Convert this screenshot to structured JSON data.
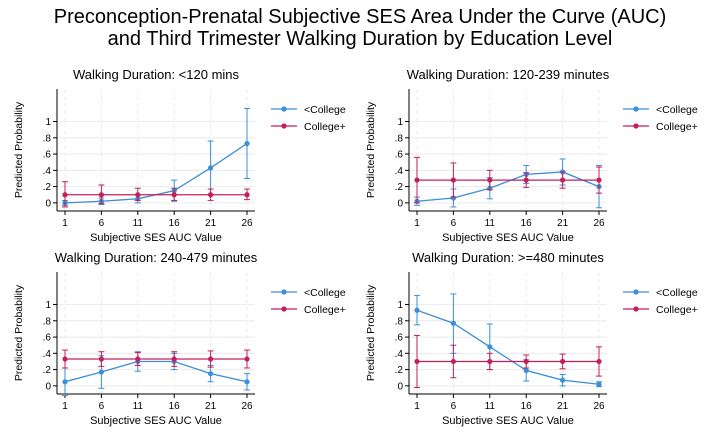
{
  "title": {
    "line1": "Preconception-Prenatal Subjective SES Area Under the Curve (AUC)",
    "line2": "and Third Trimester Walking Duration by Education Level"
  },
  "colors": {
    "college_less": "#3a8fd6",
    "college_plus": "#c41f5d",
    "axis": "#000000",
    "grid": "#e6e6e6"
  },
  "chart_data": [
    {
      "type": "line",
      "title": "Walking Duration: <120 mins",
      "xlabel": "Subjective SES AUC Value",
      "ylabel": "Predicted Probability",
      "x": [
        1,
        6,
        11,
        16,
        21,
        26
      ],
      "x_ticks": [
        "1",
        "6",
        "11",
        "16",
        "21",
        "26"
      ],
      "y_ticks": [
        "0",
        ".2",
        ".4",
        ".6",
        ".8",
        "1"
      ],
      "ylim": [
        -0.1,
        1.4
      ],
      "grid": true,
      "legend": "right",
      "series": [
        {
          "name": "<College",
          "values": [
            0.0,
            0.02,
            0.05,
            0.15,
            0.43,
            0.73
          ],
          "ci_low": [
            -0.03,
            -0.02,
            0.0,
            0.02,
            0.1,
            0.3
          ],
          "ci_high": [
            0.03,
            0.06,
            0.1,
            0.28,
            0.76,
            1.16
          ]
        },
        {
          "name": "College+",
          "values": [
            0.1,
            0.1,
            0.1,
            0.1,
            0.1,
            0.1
          ],
          "ci_low": [
            -0.05,
            -0.01,
            0.03,
            0.03,
            0.03,
            0.04
          ],
          "ci_high": [
            0.26,
            0.22,
            0.18,
            0.18,
            0.17,
            0.17
          ]
        }
      ]
    },
    {
      "type": "line",
      "title": "Walking Duration: 120-239 minutes",
      "xlabel": "Subjective SES AUC Value",
      "ylabel": "Predicted Probability",
      "x": [
        1,
        6,
        11,
        16,
        21,
        26
      ],
      "x_ticks": [
        "1",
        "6",
        "11",
        "16",
        "21",
        "26"
      ],
      "y_ticks": [
        "0",
        ".2",
        ".4",
        ".6",
        ".8",
        "1"
      ],
      "ylim": [
        -0.1,
        1.4
      ],
      "grid": true,
      "legend": "right",
      "series": [
        {
          "name": "<College",
          "values": [
            0.02,
            0.06,
            0.18,
            0.35,
            0.38,
            0.2
          ],
          "ci_low": [
            -0.03,
            -0.05,
            0.05,
            0.24,
            0.22,
            -0.06
          ],
          "ci_high": [
            0.07,
            0.17,
            0.31,
            0.46,
            0.54,
            0.46
          ]
        },
        {
          "name": "College+",
          "values": [
            0.28,
            0.28,
            0.28,
            0.28,
            0.28,
            0.28
          ],
          "ci_low": [
            0.0,
            0.07,
            0.16,
            0.19,
            0.18,
            0.12
          ],
          "ci_high": [
            0.56,
            0.49,
            0.4,
            0.37,
            0.38,
            0.44
          ]
        }
      ]
    },
    {
      "type": "line",
      "title": "Walking Duration: 240-479 minutes",
      "xlabel": "Subjective SES AUC Value",
      "ylabel": "Predicted Probability",
      "x": [
        1,
        6,
        11,
        16,
        21,
        26
      ],
      "x_ticks": [
        "1",
        "6",
        "11",
        "16",
        "21",
        "26"
      ],
      "y_ticks": [
        "0",
        ".2",
        ".4",
        ".6",
        ".8",
        "1"
      ],
      "ylim": [
        -0.1,
        1.4
      ],
      "grid": true,
      "legend": "right",
      "series": [
        {
          "name": "<College",
          "values": [
            0.05,
            0.17,
            0.3,
            0.3,
            0.15,
            0.05
          ],
          "ci_low": [
            -0.12,
            -0.03,
            0.18,
            0.2,
            0.05,
            -0.05
          ],
          "ci_high": [
            0.22,
            0.37,
            0.42,
            0.4,
            0.25,
            0.15
          ]
        },
        {
          "name": "College+",
          "values": [
            0.33,
            0.33,
            0.33,
            0.33,
            0.33,
            0.33
          ],
          "ci_low": [
            0.22,
            0.24,
            0.25,
            0.24,
            0.23,
            0.22
          ],
          "ci_high": [
            0.44,
            0.42,
            0.41,
            0.42,
            0.43,
            0.44
          ]
        }
      ]
    },
    {
      "type": "line",
      "title": "Walking Duration: >=480 minutes",
      "xlabel": "Subjective SES AUC Value",
      "ylabel": "Predicted Probability",
      "x": [
        1,
        6,
        11,
        16,
        21,
        26
      ],
      "x_ticks": [
        "1",
        "6",
        "11",
        "16",
        "21",
        "26"
      ],
      "y_ticks": [
        "0",
        ".2",
        ".4",
        ".6",
        ".8",
        "1"
      ],
      "ylim": [
        -0.1,
        1.4
      ],
      "grid": true,
      "legend": "right",
      "series": [
        {
          "name": "<College",
          "values": [
            0.93,
            0.77,
            0.48,
            0.19,
            0.07,
            0.02
          ],
          "ci_low": [
            0.75,
            0.4,
            0.2,
            0.06,
            0.0,
            -0.01
          ],
          "ci_high": [
            1.11,
            1.13,
            0.76,
            0.32,
            0.14,
            0.05
          ]
        },
        {
          "name": "College+",
          "values": [
            0.3,
            0.3,
            0.3,
            0.3,
            0.3,
            0.3
          ],
          "ci_low": [
            -0.02,
            0.1,
            0.2,
            0.22,
            0.21,
            0.12
          ],
          "ci_high": [
            0.62,
            0.5,
            0.4,
            0.38,
            0.39,
            0.48
          ]
        }
      ]
    }
  ]
}
